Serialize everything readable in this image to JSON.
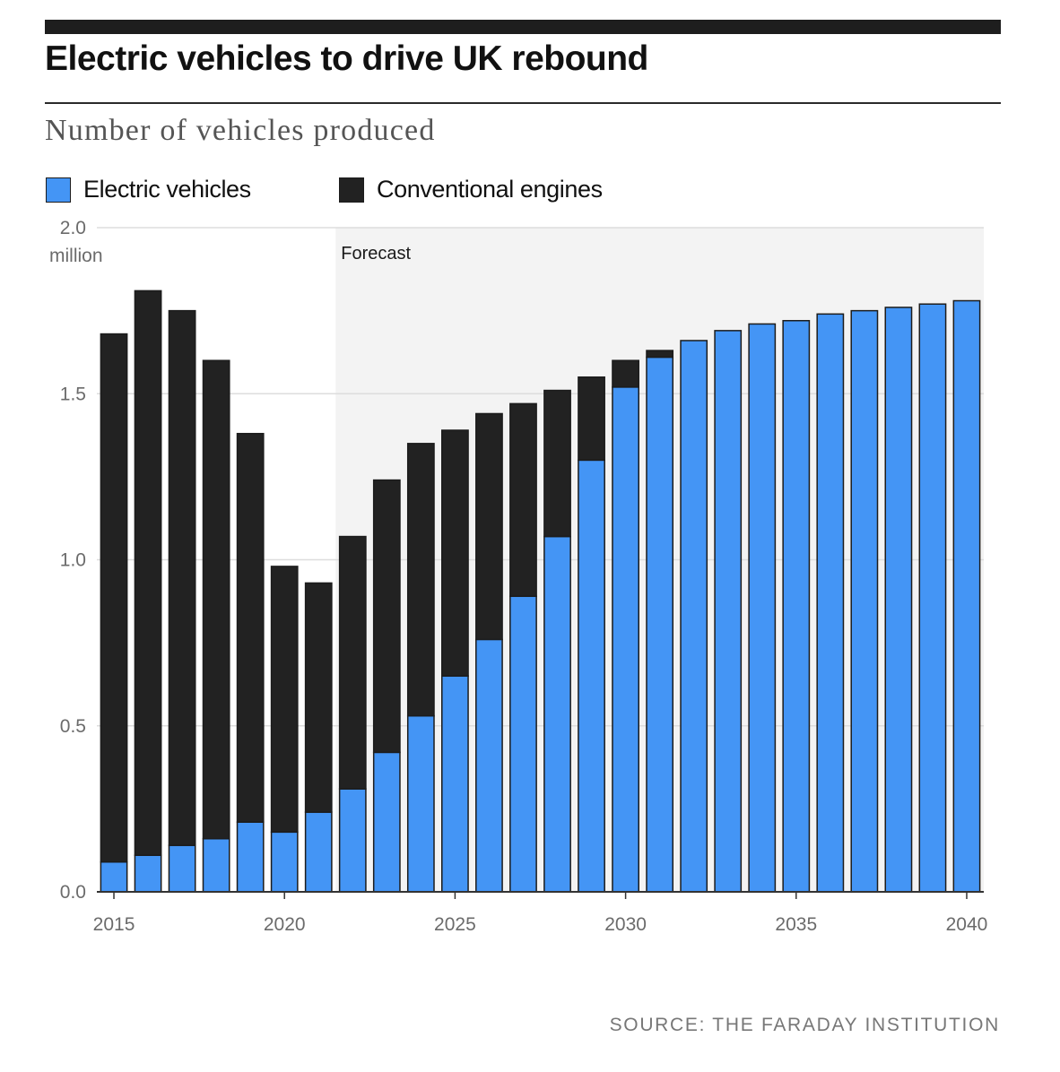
{
  "source": "SOURCE: THE FARADAY INSTITUTION",
  "chart_data": {
    "type": "bar",
    "stacked": true,
    "title": "Electric vehicles to drive UK rebound",
    "subtitle": "Number of vehicles produced",
    "x": [
      2015,
      2016,
      2017,
      2018,
      2019,
      2020,
      2021,
      2022,
      2023,
      2024,
      2025,
      2026,
      2027,
      2028,
      2029,
      2030,
      2031,
      2032,
      2033,
      2034,
      2035,
      2036,
      2037,
      2038,
      2039,
      2040
    ],
    "series": [
      {
        "name": "Electric vehicles",
        "color": "#4495f5",
        "values": [
          0.09,
          0.11,
          0.14,
          0.16,
          0.21,
          0.18,
          0.24,
          0.31,
          0.42,
          0.53,
          0.65,
          0.76,
          0.89,
          1.07,
          1.3,
          1.52,
          1.61,
          1.66,
          1.69,
          1.71,
          1.72,
          1.74,
          1.75,
          1.76,
          1.77,
          1.78
        ]
      },
      {
        "name": "Conventional engines",
        "color": "#222222",
        "values": [
          1.59,
          1.7,
          1.61,
          1.44,
          1.17,
          0.8,
          0.69,
          0.76,
          0.82,
          0.82,
          0.74,
          0.68,
          0.58,
          0.44,
          0.25,
          0.08,
          0.02,
          0,
          0,
          0,
          0,
          0,
          0,
          0,
          0,
          0
        ]
      }
    ],
    "ylim": [
      0,
      2.0
    ],
    "y_tick_labels": [
      "0.0",
      "0.5",
      "1.0",
      "1.5",
      "2.0"
    ],
    "y_unit": "million",
    "x_tick_labels": [
      "2015",
      "2020",
      "2025",
      "2030",
      "2035",
      "2040"
    ],
    "annotations": [
      {
        "text": "Forecast",
        "start_year": 2022,
        "fill": "#f3f3f3"
      }
    ],
    "grid": true,
    "legend_position": "top-left"
  }
}
